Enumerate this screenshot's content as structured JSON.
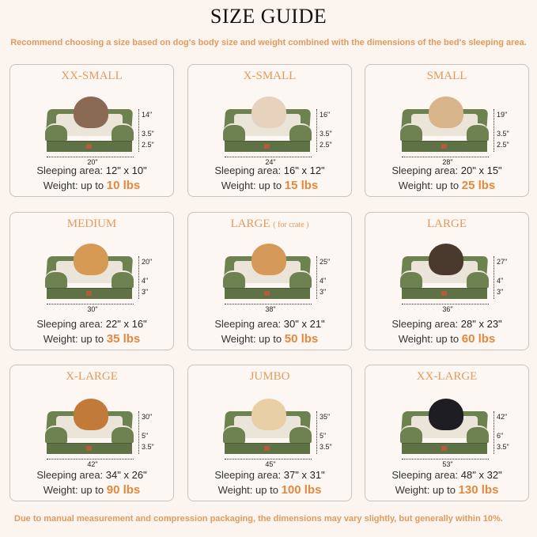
{
  "title": "SIZE GUIDE",
  "subtitle": "Recommend choosing a size based on dog's body size and weight combined with the dimensions of the bed's sleeping area.",
  "footer": "Due to manual measurement and compression packaging, the dimensions may vary slightly, but generally within 10%.",
  "colors": {
    "accent": "#e3893f",
    "bed_green": "#6e8150",
    "background": "#fbf4ef"
  },
  "labels": {
    "sleeping": "Sleeping area:",
    "weight": "Weight:  up to"
  },
  "sizes": [
    {
      "name": "XX-SMALL",
      "note": "",
      "pet": "cat",
      "width": "20\"",
      "height": "14\"",
      "cushion": "3.5\"",
      "base": "2.5\"",
      "area": "12\" x 10\"",
      "weight": "10 lbs"
    },
    {
      "name": "X-SMALL",
      "note": "",
      "pet": "dog",
      "width": "24\"",
      "height": "16\"",
      "cushion": "3.5\"",
      "base": "2.5\"",
      "area": "16\" x 12\"",
      "weight": "15 lbs"
    },
    {
      "name": "SMALL",
      "note": "",
      "pet": "dog",
      "width": "28\"",
      "height": "19\"",
      "cushion": "3.5\"",
      "base": "2.5\"",
      "area": "20\" x 15\"",
      "weight": "25 lbs"
    },
    {
      "name": "MEDIUM",
      "note": "",
      "pet": "dog",
      "width": "30\"",
      "height": "20\"",
      "cushion": "4\"",
      "base": "3\"",
      "area": "22\" x 16\"",
      "weight": "35 lbs"
    },
    {
      "name": "LARGE",
      "note": "( for crate )",
      "pet": "dog",
      "width": "38\"",
      "height": "25\"",
      "cushion": "4\"",
      "base": "3\"",
      "area": "30\" x 21\"",
      "weight": "50 lbs"
    },
    {
      "name": "LARGE",
      "note": "",
      "pet": "dog",
      "width": "36\"",
      "height": "27\"",
      "cushion": "4\"",
      "base": "3\"",
      "area": "28\" x 23\"",
      "weight": "60 lbs"
    },
    {
      "name": "X-LARGE",
      "note": "",
      "pet": "dog",
      "width": "42\"",
      "height": "30\"",
      "cushion": "5\"",
      "base": "3.5\"",
      "area": "34\" x 26\"",
      "weight": "90 lbs"
    },
    {
      "name": "JUMBO",
      "note": "",
      "pet": "dog",
      "width": "45\"",
      "height": "35\"",
      "cushion": "5\"",
      "base": "3.5\"",
      "area": "37\" x 31\"",
      "weight": "100 lbs"
    },
    {
      "name": "XX-LARGE",
      "note": "",
      "pet": "dog",
      "width": "53\"",
      "height": "42\"",
      "cushion": "6\"",
      "base": "3.5\"",
      "area": "48\" x 32\"",
      "weight": "130 lbs"
    }
  ]
}
